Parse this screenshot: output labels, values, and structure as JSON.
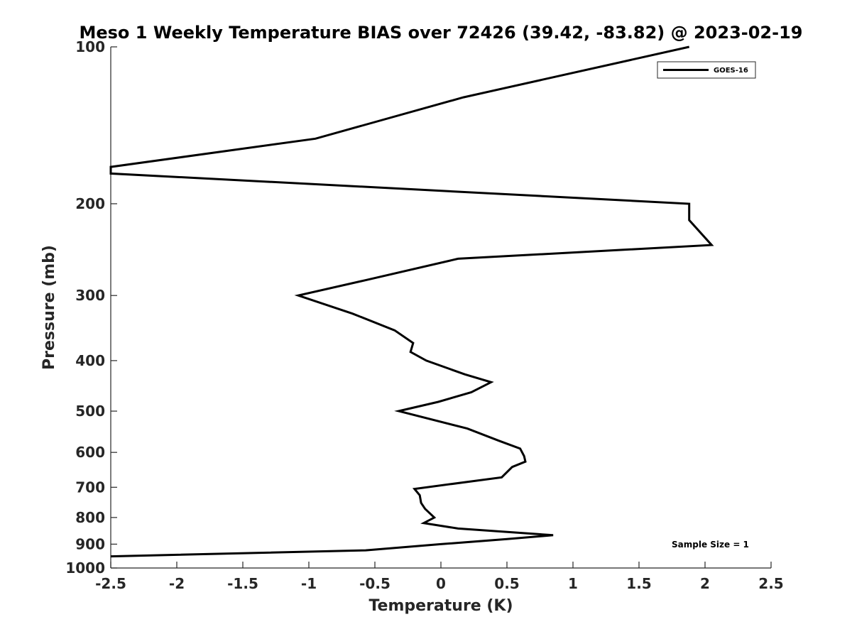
{
  "chart_data": {
    "type": "line",
    "title": "Meso 1 Weekly Temperature BIAS over 72426 (39.42, -83.82) @ 2023-02-19",
    "xlabel": "Temperature (K)",
    "ylabel": "Pressure (mb)",
    "xlim": [
      -2.5,
      2.5
    ],
    "ylim": [
      100,
      1000
    ],
    "y_scale": "log",
    "y_reversed": true,
    "grid": false,
    "legend_position": "top-right",
    "x_ticks": [
      -2.5,
      -2,
      -1.5,
      -1,
      -0.5,
      0,
      0.5,
      1,
      1.5,
      2,
      2.5
    ],
    "x_tick_labels": [
      "-2.5",
      "-2",
      "-1.5",
      "-1",
      "-0.5",
      "0",
      "0.5",
      "1",
      "1.5",
      "2",
      "2.5"
    ],
    "y_ticks": [
      100,
      200,
      300,
      400,
      500,
      600,
      700,
      800,
      900,
      1000
    ],
    "y_tick_labels": [
      "100",
      "200",
      "300",
      "400",
      "500",
      "600",
      "700",
      "800",
      "900",
      "1000"
    ],
    "annotation": "Sample Size = 1",
    "series": [
      {
        "name": "GOES-16",
        "color": "#000000",
        "points": [
          {
            "x": 1.88,
            "p": 100
          },
          {
            "x": 0.17,
            "p": 125
          },
          {
            "x": -0.95,
            "p": 150
          },
          {
            "x": -2.5,
            "p": 170
          },
          {
            "x": -2.5,
            "p": 175
          },
          {
            "x": 1.88,
            "p": 200
          },
          {
            "x": 1.88,
            "p": 215
          },
          {
            "x": 2.05,
            "p": 240
          },
          {
            "x": 0.13,
            "p": 255
          },
          {
            "x": -0.56,
            "p": 280
          },
          {
            "x": -1.08,
            "p": 300
          },
          {
            "x": -0.67,
            "p": 325
          },
          {
            "x": -0.35,
            "p": 350
          },
          {
            "x": -0.21,
            "p": 370
          },
          {
            "x": -0.23,
            "p": 385
          },
          {
            "x": -0.11,
            "p": 400
          },
          {
            "x": 0.18,
            "p": 425
          },
          {
            "x": 0.38,
            "p": 440
          },
          {
            "x": 0.23,
            "p": 460
          },
          {
            "x": -0.02,
            "p": 480
          },
          {
            "x": -0.32,
            "p": 500
          },
          {
            "x": 0.2,
            "p": 540
          },
          {
            "x": 0.44,
            "p": 570
          },
          {
            "x": 0.6,
            "p": 590
          },
          {
            "x": 0.63,
            "p": 610
          },
          {
            "x": 0.64,
            "p": 625
          },
          {
            "x": 0.54,
            "p": 640
          },
          {
            "x": 0.46,
            "p": 670
          },
          {
            "x": -0.2,
            "p": 705
          },
          {
            "x": -0.16,
            "p": 725
          },
          {
            "x": -0.15,
            "p": 750
          },
          {
            "x": -0.12,
            "p": 770
          },
          {
            "x": -0.05,
            "p": 800
          },
          {
            "x": -0.13,
            "p": 820
          },
          {
            "x": 0.13,
            "p": 840
          },
          {
            "x": 0.85,
            "p": 865
          },
          {
            "x": 0.5,
            "p": 880
          },
          {
            "x": 0.0,
            "p": 900
          },
          {
            "x": -0.57,
            "p": 925
          },
          {
            "x": -2.5,
            "p": 950
          }
        ]
      }
    ]
  }
}
